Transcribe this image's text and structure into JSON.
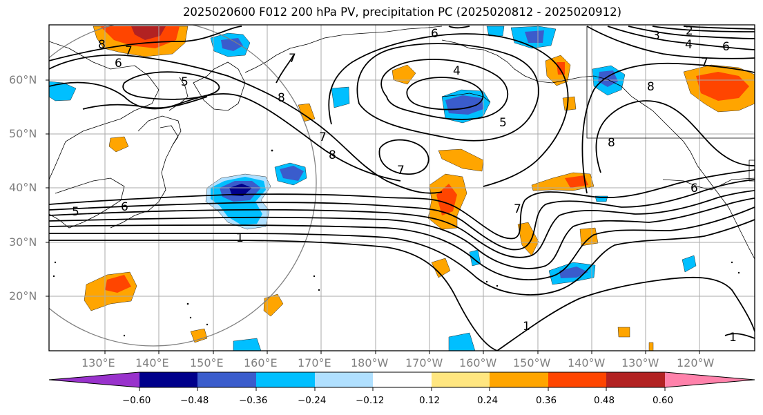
{
  "title": "2025020600 F012 200 hPa PV, precipitation PC (2025020812 - 2025020912)",
  "lat_labels": [
    "20°N",
    "30°N",
    "40°N",
    "50°N",
    "60°N"
  ],
  "lon_labels": [
    "130°E",
    "140°E",
    "150°E",
    "160°E",
    "170°E",
    "180°W",
    "170°W",
    "160°W",
    "150°W",
    "140°W",
    "130°W",
    "120°W"
  ],
  "colorbar": {
    "ticks": [
      "−0.60",
      "−0.48",
      "−0.36",
      "−0.24",
      "−0.12",
      "0.12",
      "0.24",
      "0.36",
      "0.48",
      "0.60"
    ],
    "colors": [
      "#9932cc",
      "#00008b",
      "#3a5ccc",
      "#00bfff",
      "#b0e0ff",
      "#ffffff",
      "#ffe680",
      "#ffa500",
      "#ff4500",
      "#b22222",
      "#ff82ab"
    ]
  },
  "contour_labels": [
    "8",
    "7",
    "6",
    "5",
    "4",
    "3",
    "2",
    "1"
  ],
  "map_contour_labels": [
    {
      "t": "8"
    },
    {
      "t": "7"
    },
    {
      "t": "6"
    },
    {
      "t": "5"
    },
    {
      "t": "6"
    },
    {
      "t": "5"
    },
    {
      "t": "1"
    },
    {
      "t": "7"
    },
    {
      "t": "8"
    },
    {
      "t": "7"
    },
    {
      "t": "8"
    },
    {
      "t": "6"
    },
    {
      "t": "5"
    },
    {
      "t": "7"
    },
    {
      "t": "7"
    },
    {
      "t": "8"
    },
    {
      "t": "3"
    },
    {
      "t": "2"
    },
    {
      "t": "4"
    },
    {
      "t": "6"
    },
    {
      "t": "7"
    },
    {
      "t": "8"
    },
    {
      "t": "6"
    },
    {
      "t": "1"
    },
    {
      "t": "1"
    },
    {
      "t": "4"
    }
  ]
}
